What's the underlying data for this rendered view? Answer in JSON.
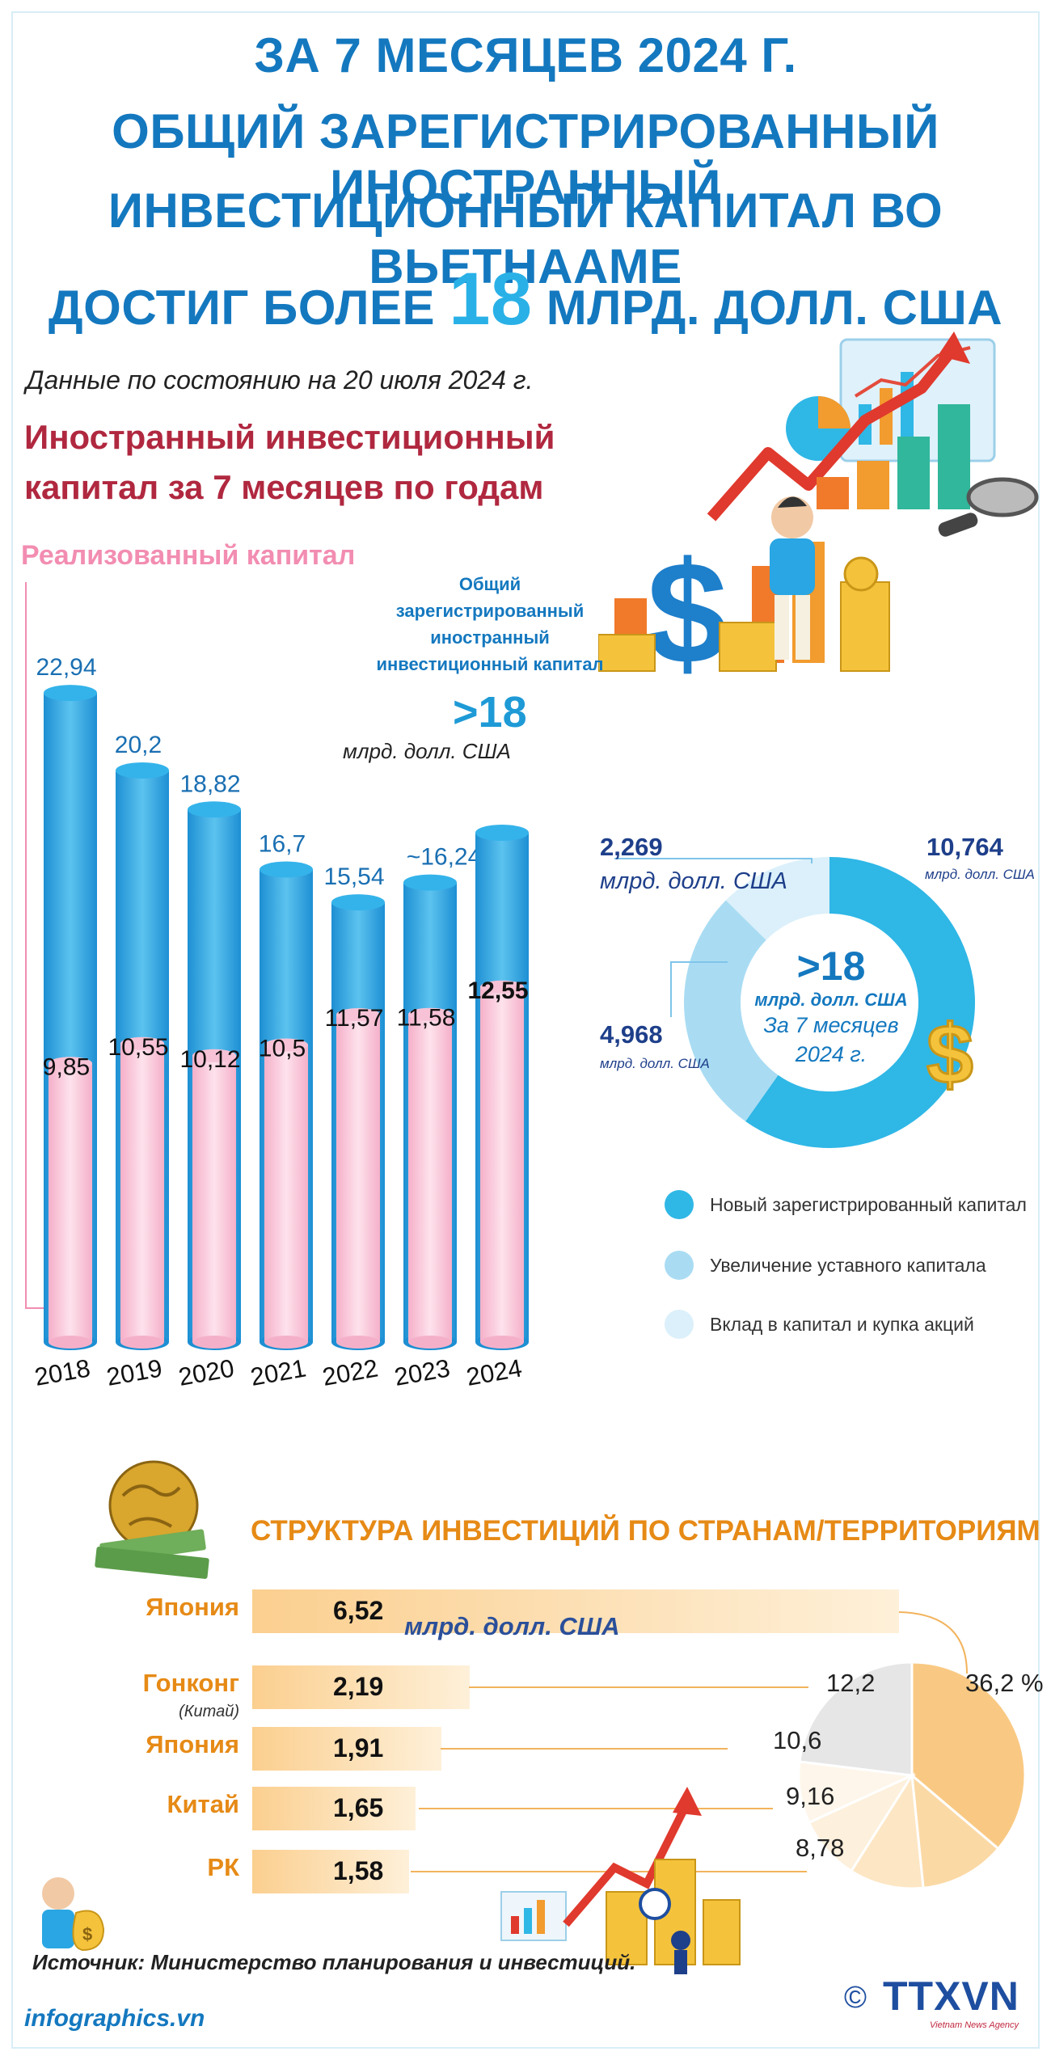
{
  "title": {
    "line1": "ЗА 7 МЕСЯЦЕВ 2024 Г.",
    "line2": "ОБЩИЙ ЗАРЕГИСТРИРОВАННЫЙ ИНОСТРАННЫЙ",
    "line3": "ИНВЕСТИЦИОННЫЙ КАПИТАЛ ВО ВЬЕТНААМЕ",
    "line4_prefix": "ДОСТИГ БОЛЕЕ",
    "line4_number": "18",
    "line4_suffix": "МЛРД. ДОЛЛ. США"
  },
  "date_note": "Данные по состоянию на 20 июля 2024 г.",
  "section1": {
    "title_line1": "Иностранный инвестиционный",
    "title_line2": "капитал за 7 месяцев по годам",
    "realized_label": "Реализованный капитал",
    "total_label_line1": "Общий",
    "total_label_line2": "зарегистрированный",
    "total_label_line3": "иностранный",
    "total_label_line4": "инвестиционный капитал",
    "total_value": ">18",
    "total_unit": "млрд. долл. США"
  },
  "donut": {
    "center_value": ">18",
    "center_unit": "млрд. долл. США",
    "center_period_line1": "За 7 месяцев",
    "center_period_line2": "2024 г.",
    "unit": "млрд. долл. США",
    "items": [
      {
        "label": "Новый зарегистрированный капитал",
        "value": "10,764",
        "color": "#2fb7e6"
      },
      {
        "label": "Увеличение уставного капитала",
        "value": "4,968",
        "color": "#a9dcf3"
      },
      {
        "label": "Вклад в капитал и купка акций",
        "value": "2,269",
        "color": "#dbf0fa"
      }
    ]
  },
  "countries": {
    "title": "СТРУКТУРА ИНВЕСТИЦИЙ ПО СТРАНАМ/ТЕРРИТОРИЯМ",
    "unit": "млрд. долл. США",
    "items": [
      {
        "name": "Япония",
        "sub": "",
        "value": "6,52",
        "share": "36,2 %"
      },
      {
        "name": "Гонконг",
        "sub": "(Китай)",
        "value": "2,19",
        "share": "12,2"
      },
      {
        "name": "Япония",
        "sub": "",
        "value": "1,91",
        "share": "10,6"
      },
      {
        "name": "Китай",
        "sub": "",
        "value": "1,65",
        "share": "9,16"
      },
      {
        "name": "РК",
        "sub": "",
        "value": "1,58",
        "share": "8,78"
      }
    ]
  },
  "footer": {
    "source": "Источник: Министерство планирования и инвестиций.",
    "site": "infographics.vn",
    "brand": "TTXVN",
    "brand_sub": "Vietnam News Agency",
    "copyright": "©"
  },
  "colors": {
    "title_blue": "#1478bf",
    "registered_blue": "#29a6e3",
    "realized_pink": "#f7b9d0",
    "section_red": "#b0283f",
    "country_orange": "#e68a16"
  },
  "chart_data": [
    {
      "type": "bar",
      "title": "Иностранный инвестиционный капитал за 7 месяцев по годам",
      "categories": [
        "2018",
        "2019",
        "2020",
        "2021",
        "2022",
        "2023",
        "2024"
      ],
      "series": [
        {
          "name": "Общий зарегистрированный иностранный инвестиционный капитал",
          "values": [
            22.94,
            20.2,
            18.82,
            16.7,
            15.54,
            16.24,
            18
          ]
        },
        {
          "name": "Реализованный капитал",
          "values": [
            9.85,
            10.55,
            10.12,
            10.5,
            11.57,
            11.58,
            12.55
          ]
        }
      ],
      "value_labels": {
        "registered": [
          "22,94",
          "20,2",
          "18,82",
          "16,7",
          "15,54",
          "~16,24",
          ""
        ],
        "realized": [
          "9,85",
          "10,55",
          "10,12",
          "10,5",
          "11,57",
          "11,58",
          "12,55"
        ]
      },
      "ylim": [
        0,
        24
      ]
    },
    {
      "type": "pie",
      "title": "За 7 месяцев 2024 г.",
      "labels": [
        "Новый зарегистрированный капитал",
        "Увеличение уставного капитала",
        "Вклад в капитал и купка акций"
      ],
      "values": [
        10.764,
        4.968,
        2.269
      ]
    },
    {
      "type": "pie",
      "title": "СТРУКТУРА ИНВЕСТИЦИЙ ПО СТРАНАМ/ТЕРРИТОРИЯМ",
      "labels": [
        "Япония",
        "Гонконг (Китай)",
        "Япония",
        "Китай",
        "РК"
      ],
      "values": [
        36.2,
        12.2,
        10.6,
        9.16,
        8.78
      ]
    }
  ]
}
